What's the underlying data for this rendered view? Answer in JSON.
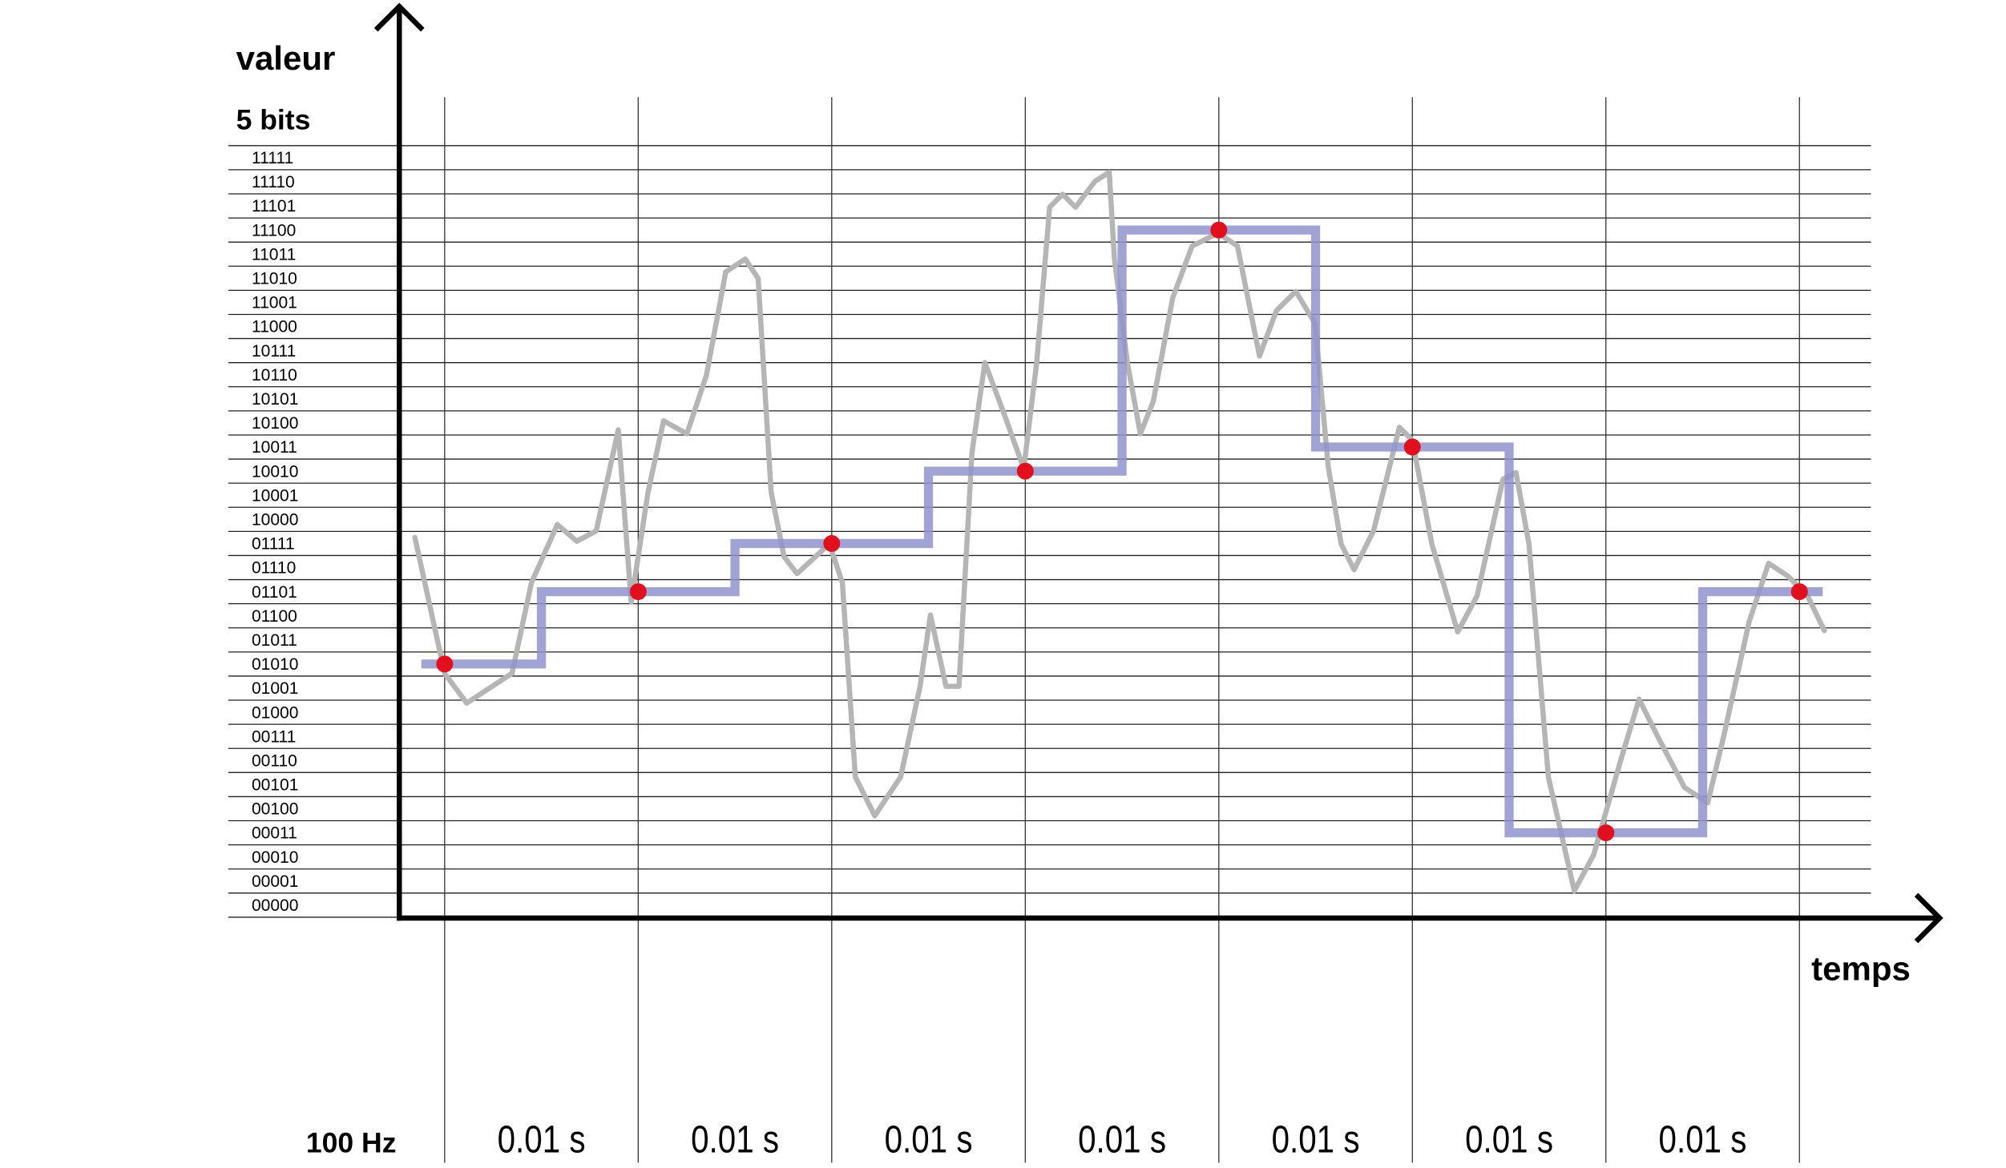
{
  "axis": {
    "y_label": "valeur",
    "bits_label": "5 bits",
    "x_label": "temps",
    "frequency_label": "100 Hz"
  },
  "levels": [
    "00000",
    "00001",
    "00010",
    "00011",
    "00100",
    "00101",
    "00110",
    "00111",
    "01000",
    "01001",
    "01010",
    "01011",
    "01100",
    "01101",
    "01110",
    "01111",
    "10000",
    "10001",
    "10010",
    "10011",
    "10100",
    "10101",
    "10110",
    "10111",
    "11000",
    "11001",
    "11010",
    "11011",
    "11100",
    "11101",
    "11110",
    "11111"
  ],
  "samples": [
    10,
    13,
    15,
    18,
    28,
    19,
    3,
    13
  ],
  "intervals": [
    "0.01 s",
    "0.01 s",
    "0.01 s",
    "0.01 s",
    "0.01 s",
    "0.01 s",
    "0.01 s"
  ]
}
